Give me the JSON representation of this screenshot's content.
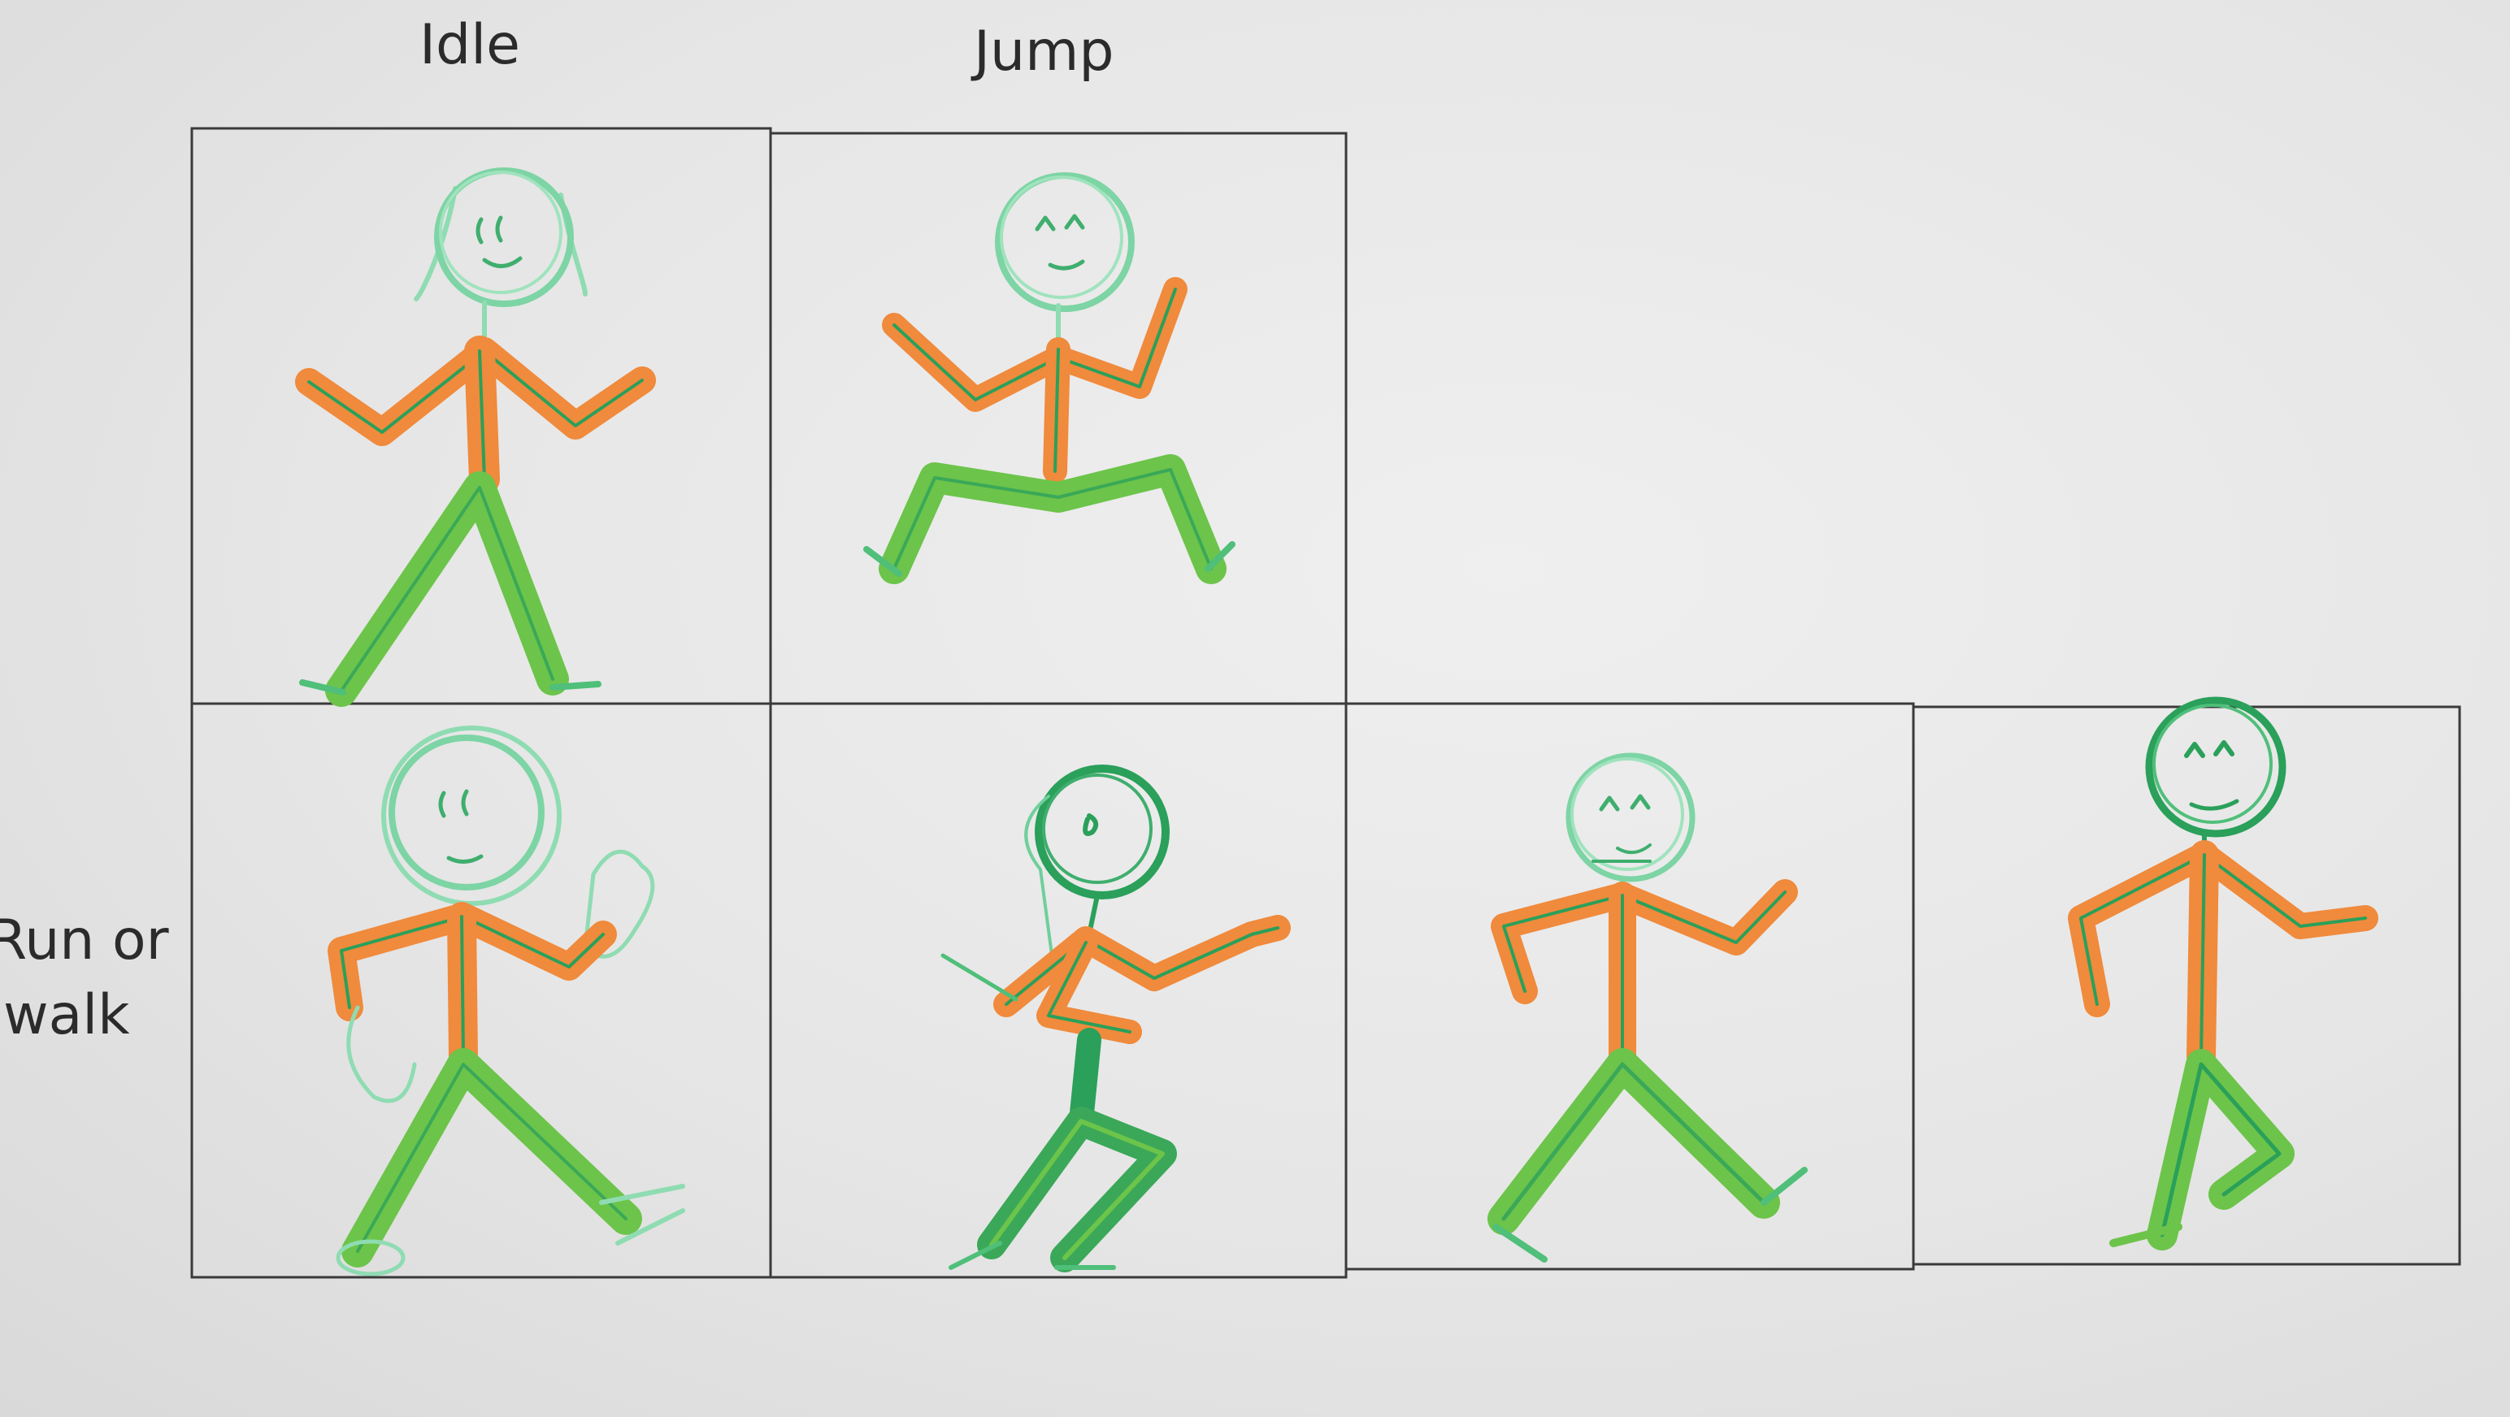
{
  "labels": {
    "idle": "Idle",
    "jump": "Jump",
    "run_line1": "Run or",
    "run_line2": "walk"
  },
  "colors": {
    "paper": "#e8e8e8",
    "grid_line": "#3a3a3a",
    "head_green": "#6fcf9a",
    "dark_green": "#2aa05a",
    "leg_green": "#6cc44a",
    "shirt_orange": "#f08a3c"
  },
  "grid": {
    "rows": 2,
    "top_row_frames": 2,
    "bottom_row_frames": 4
  }
}
